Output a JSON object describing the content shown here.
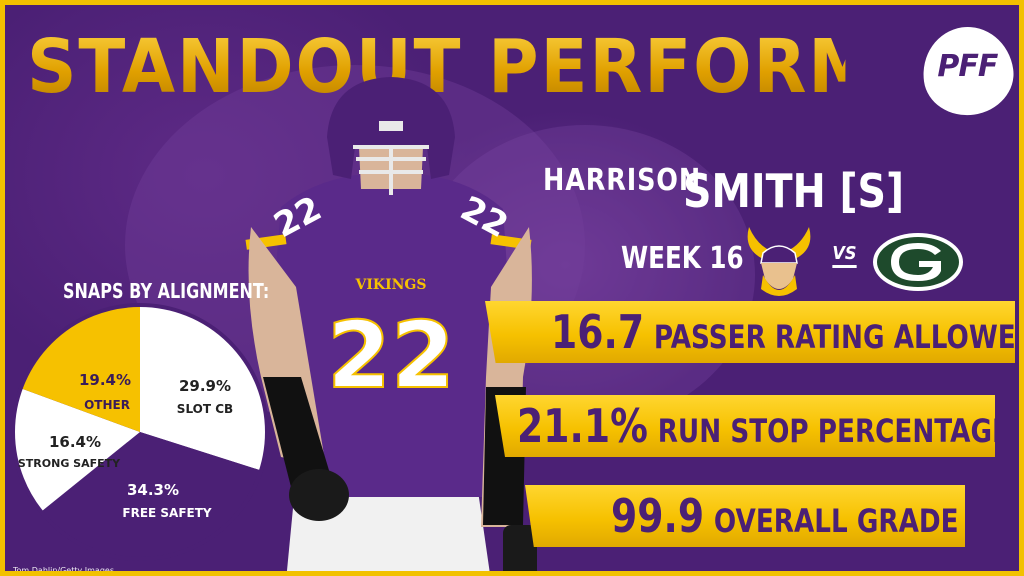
{
  "header": {
    "title": "STANDOUT PERFORMANCES",
    "brand_logo": "PFF"
  },
  "player": {
    "first_name": "HARRISON",
    "last_name_position": "SMITH [S]",
    "jersey_number": "22",
    "jersey_wordmark": "VIKINGS"
  },
  "matchup": {
    "week": "WEEK 16",
    "vs": "VS",
    "team1_icon": "minnesota-vikings-logo",
    "team2_icon": "green-bay-packers-logo"
  },
  "stats": [
    {
      "value": "16.7",
      "label": "PASSER RATING ALLOWED"
    },
    {
      "value": "21.1%",
      "label": "RUN STOP PERCENTAGE"
    },
    {
      "value": "99.9",
      "label": "OVERALL GRADE"
    }
  ],
  "snaps": {
    "title": "SNAPS BY ALIGNMENT:",
    "slices": [
      {
        "pct": "29.9%",
        "name": "SLOT CB",
        "value": 29.9,
        "color": "#ffffff"
      },
      {
        "pct": "34.3%",
        "name": "FREE SAFETY",
        "value": 34.3,
        "color": "#4b2075"
      },
      {
        "pct": "16.4%",
        "name": "STRONG SAFETY",
        "value": 16.4,
        "color": "#ffffff"
      },
      {
        "pct": "19.4%",
        "name": "OTHER",
        "value": 19.4,
        "color": "#f6c100"
      }
    ]
  },
  "colors": {
    "purple": "#4b2075",
    "gold": "#f6c100",
    "white": "#ffffff"
  },
  "credit": "Tom Dahlin/Getty Images"
}
